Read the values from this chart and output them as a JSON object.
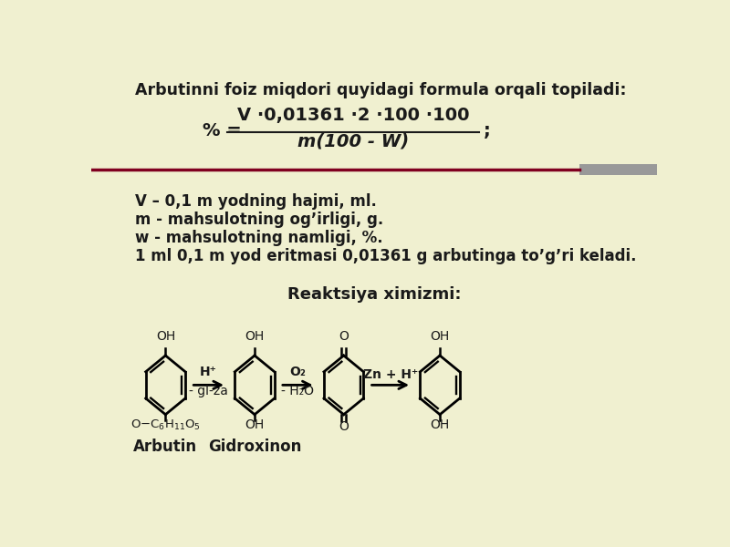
{
  "bg_color": "#f0f0d0",
  "title_text": "Arbutinni foiz miqdori quyidagi formula orqali topiladi:",
  "formula_numerator": "V ·0,01361 ·2 ·100 ·100",
  "formula_denominator": "m(100 - W)",
  "formula_prefix": "% =",
  "formula_suffix": ";",
  "desc_lines": [
    "V – 0,1 m yodning hajmi, ml.",
    "m - mahsulotning og’irligi, g.",
    "w - mahsulotning namligi, %.",
    "1 ml 0,1 m yod eritmasi 0,01361 g arbutinga to’g’ri keladi."
  ],
  "reaction_title": "Reaktsiya ximizmi:",
  "arbutin_label": "Arbutin",
  "gidroxinon_label": "Gidroxinon",
  "arrow1_top": "H⁺",
  "arrow1_bottom": "- gl-za",
  "arrow2_top": "O₂",
  "arrow2_bottom": "- H₂O",
  "arrow3_label": "Zn + H⁺",
  "separator_color": "#800020",
  "gray_bar_color": "#999999",
  "text_color": "#1a1a1a"
}
